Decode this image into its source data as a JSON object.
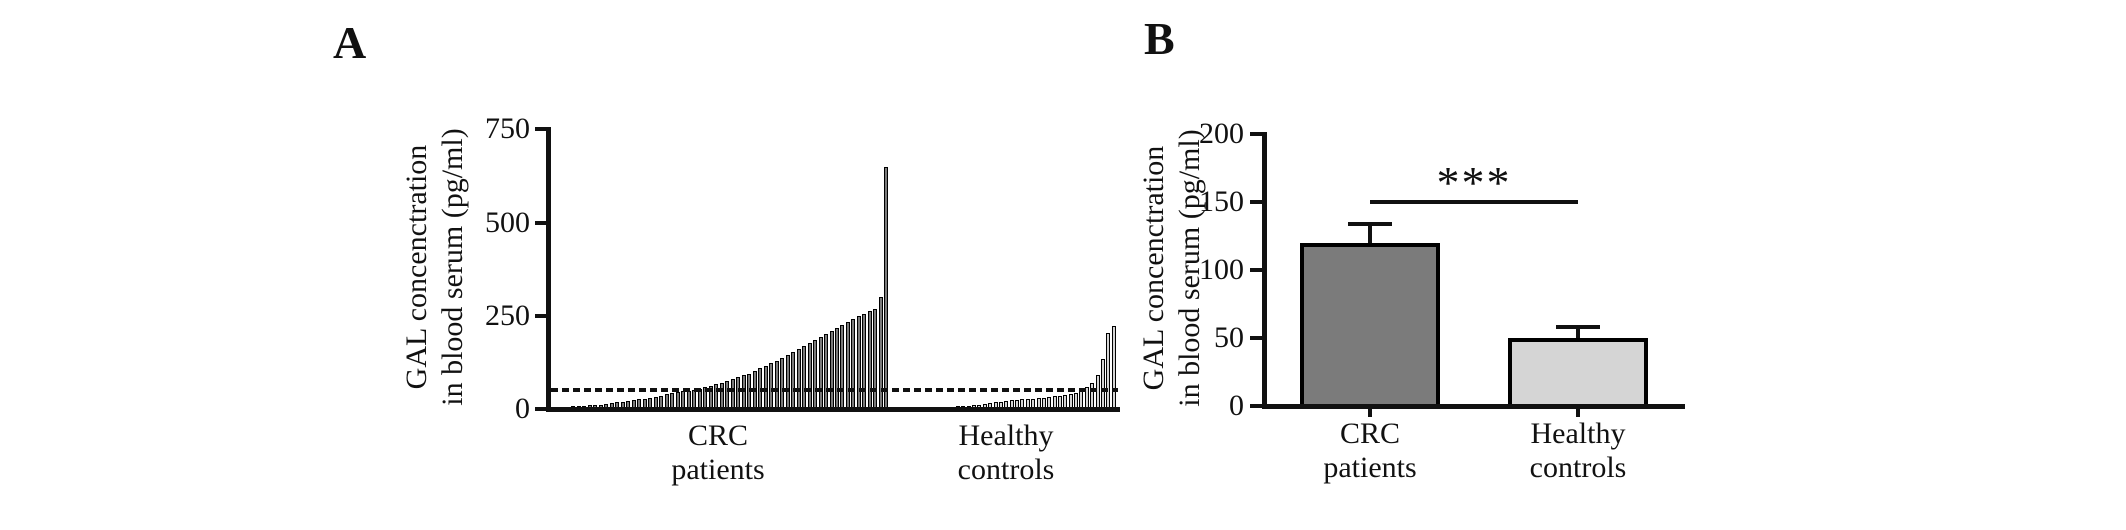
{
  "figure": {
    "background": "#ffffff",
    "line_color": "#111111"
  },
  "chart_data": [
    {
      "type": "bar",
      "panel": "A",
      "subtype": "per-subject ascending bars (waterfall)",
      "ylabel": "GAL concenctration in blood serum (pg/ml)",
      "ylabel_lines": [
        "GAL concenctration",
        "in blood serum (pg/ml)"
      ],
      "ylim": [
        0,
        750
      ],
      "yticks": [
        0,
        250,
        500,
        750
      ],
      "grid": false,
      "cutoff_line": {
        "value": 50,
        "style": "dashed"
      },
      "groups": [
        {
          "label": "CRC patients",
          "label_lines": [
            "CRC",
            "patients"
          ],
          "bar_color": "#7b7b7b",
          "values": [
            4,
            5,
            6,
            7,
            8,
            9,
            10,
            11,
            12,
            14,
            16,
            18,
            20,
            22,
            24,
            26,
            28,
            30,
            33,
            36,
            39,
            42,
            45,
            47,
            49,
            51,
            54,
            58,
            62,
            66,
            70,
            75,
            80,
            85,
            90,
            95,
            103,
            109,
            115,
            122,
            130,
            138,
            146,
            154,
            162,
            170,
            178,
            186,
            194,
            202,
            210,
            218,
            226,
            234,
            242,
            250,
            256,
            262,
            268,
            300,
            650
          ]
        },
        {
          "label": "Healthy controls",
          "label_lines": [
            "Healthy",
            "controls"
          ],
          "bar_color": "#d5d5d5",
          "values": [
            1,
            1,
            2,
            2,
            3,
            4,
            5,
            6,
            7,
            8,
            9,
            10,
            12,
            14,
            16,
            18,
            20,
            22,
            24,
            25,
            26,
            27,
            28,
            29,
            30,
            32,
            34,
            36,
            38,
            40,
            44,
            50,
            58,
            70,
            90,
            133,
            205,
            222
          ]
        }
      ]
    },
    {
      "type": "bar",
      "panel": "B",
      "subtype": "group mean with SEM error bars",
      "ylabel": "GAL concenctration in blood serum (pg/ml)",
      "ylabel_lines": [
        "GAL concenctration",
        "in blood serum (pg/ml)"
      ],
      "ylim": [
        0,
        200
      ],
      "yticks": [
        0,
        50,
        100,
        150,
        200
      ],
      "grid": false,
      "categories": [
        "CRC patients",
        "Healthy controls"
      ],
      "significance": {
        "label": "***",
        "level_value": 150
      },
      "bars": [
        {
          "label_lines": [
            "CRC",
            "patients"
          ],
          "mean": 120,
          "sem": 14,
          "color": "#7b7b7b"
        },
        {
          "label_lines": [
            "Healthy",
            "controls"
          ],
          "mean": 50,
          "sem": 8,
          "color": "#d5d5d5"
        }
      ]
    }
  ]
}
